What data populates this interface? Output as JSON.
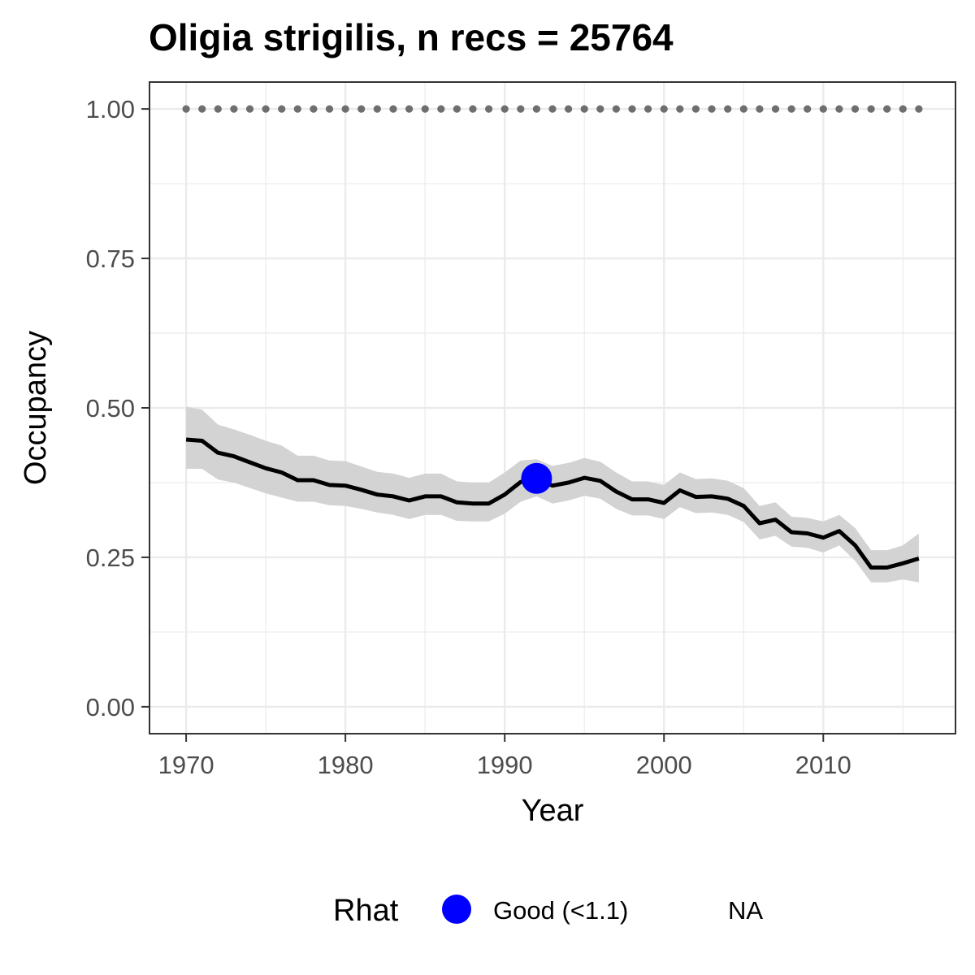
{
  "chart_data": {
    "type": "line",
    "title": "Oligia strigilis, n recs = 25764",
    "xlabel": "Year",
    "ylabel": "Occupancy",
    "xlim": [
      1967.7,
      2018.3
    ],
    "ylim": [
      -0.045,
      1.045
    ],
    "x_ticks": [
      1970,
      1980,
      1990,
      2000,
      2010
    ],
    "x_tick_labels": [
      "1970",
      "1980",
      "1990",
      "2000",
      "2010"
    ],
    "y_ticks": [
      0,
      0.25,
      0.5,
      0.75,
      1
    ],
    "y_tick_labels": [
      "0.00",
      "0.25",
      "0.50",
      "0.75",
      "1.00"
    ],
    "grid": true,
    "legend": {
      "position": "bottom",
      "title": "Rhat",
      "entries": [
        {
          "label": "Good (<1.1)",
          "color": "#0000ff"
        },
        {
          "label": "NA",
          "color": null
        }
      ]
    },
    "colors": {
      "line": "#000000",
      "ribbon": "#d3d3d3",
      "reference_points": "#6e6e6e",
      "rhat_good": "#0000ff",
      "grid": "#ebebeb",
      "panel_border": "#333333"
    },
    "series": [
      {
        "kind": "mean",
        "x": [
          1970,
          1971,
          1972,
          1973,
          1974,
          1975,
          1976,
          1977,
          1978,
          1979,
          1980,
          1981,
          1982,
          1983,
          1984,
          1985,
          1986,
          1987,
          1988,
          1989,
          1990,
          1991,
          1992,
          1993,
          1994,
          1995,
          1996,
          1997,
          1998,
          1999,
          2000,
          2001,
          2002,
          2003,
          2004,
          2005,
          2006,
          2007,
          2008,
          2009,
          2010,
          2011,
          2012,
          2013,
          2014,
          2015,
          2016
        ],
        "y": [
          0.447,
          0.445,
          0.425,
          0.419,
          0.409,
          0.399,
          0.392,
          0.379,
          0.379,
          0.371,
          0.37,
          0.363,
          0.355,
          0.352,
          0.345,
          0.352,
          0.352,
          0.342,
          0.34,
          0.34,
          0.355,
          0.376,
          0.382,
          0.37,
          0.375,
          0.383,
          0.378,
          0.36,
          0.347,
          0.347,
          0.341,
          0.362,
          0.351,
          0.352,
          0.348,
          0.336,
          0.307,
          0.313,
          0.292,
          0.29,
          0.283,
          0.294,
          0.27,
          0.233,
          0.233,
          0.24,
          0.248
        ]
      },
      {
        "kind": "lower",
        "y": [
          0.398,
          0.398,
          0.38,
          0.375,
          0.366,
          0.357,
          0.35,
          0.343,
          0.343,
          0.337,
          0.336,
          0.331,
          0.325,
          0.321,
          0.314,
          0.321,
          0.321,
          0.311,
          0.31,
          0.31,
          0.323,
          0.343,
          0.352,
          0.34,
          0.345,
          0.353,
          0.348,
          0.331,
          0.32,
          0.32,
          0.314,
          0.334,
          0.324,
          0.325,
          0.321,
          0.309,
          0.28,
          0.286,
          0.268,
          0.266,
          0.258,
          0.27,
          0.244,
          0.208,
          0.208,
          0.213,
          0.208
        ]
      },
      {
        "kind": "upper",
        "y": [
          0.502,
          0.497,
          0.472,
          0.464,
          0.455,
          0.445,
          0.437,
          0.42,
          0.42,
          0.412,
          0.411,
          0.402,
          0.393,
          0.39,
          0.383,
          0.39,
          0.39,
          0.377,
          0.375,
          0.375,
          0.392,
          0.412,
          0.414,
          0.403,
          0.408,
          0.416,
          0.41,
          0.392,
          0.377,
          0.377,
          0.371,
          0.392,
          0.381,
          0.382,
          0.378,
          0.366,
          0.336,
          0.342,
          0.318,
          0.316,
          0.31,
          0.321,
          0.299,
          0.262,
          0.262,
          0.27,
          0.29
        ]
      },
      {
        "kind": "reference_points",
        "y": 1.0
      }
    ],
    "rhat_points": [
      {
        "x": 1992,
        "y": 0.382,
        "label": "Good (<1.1)"
      }
    ]
  }
}
